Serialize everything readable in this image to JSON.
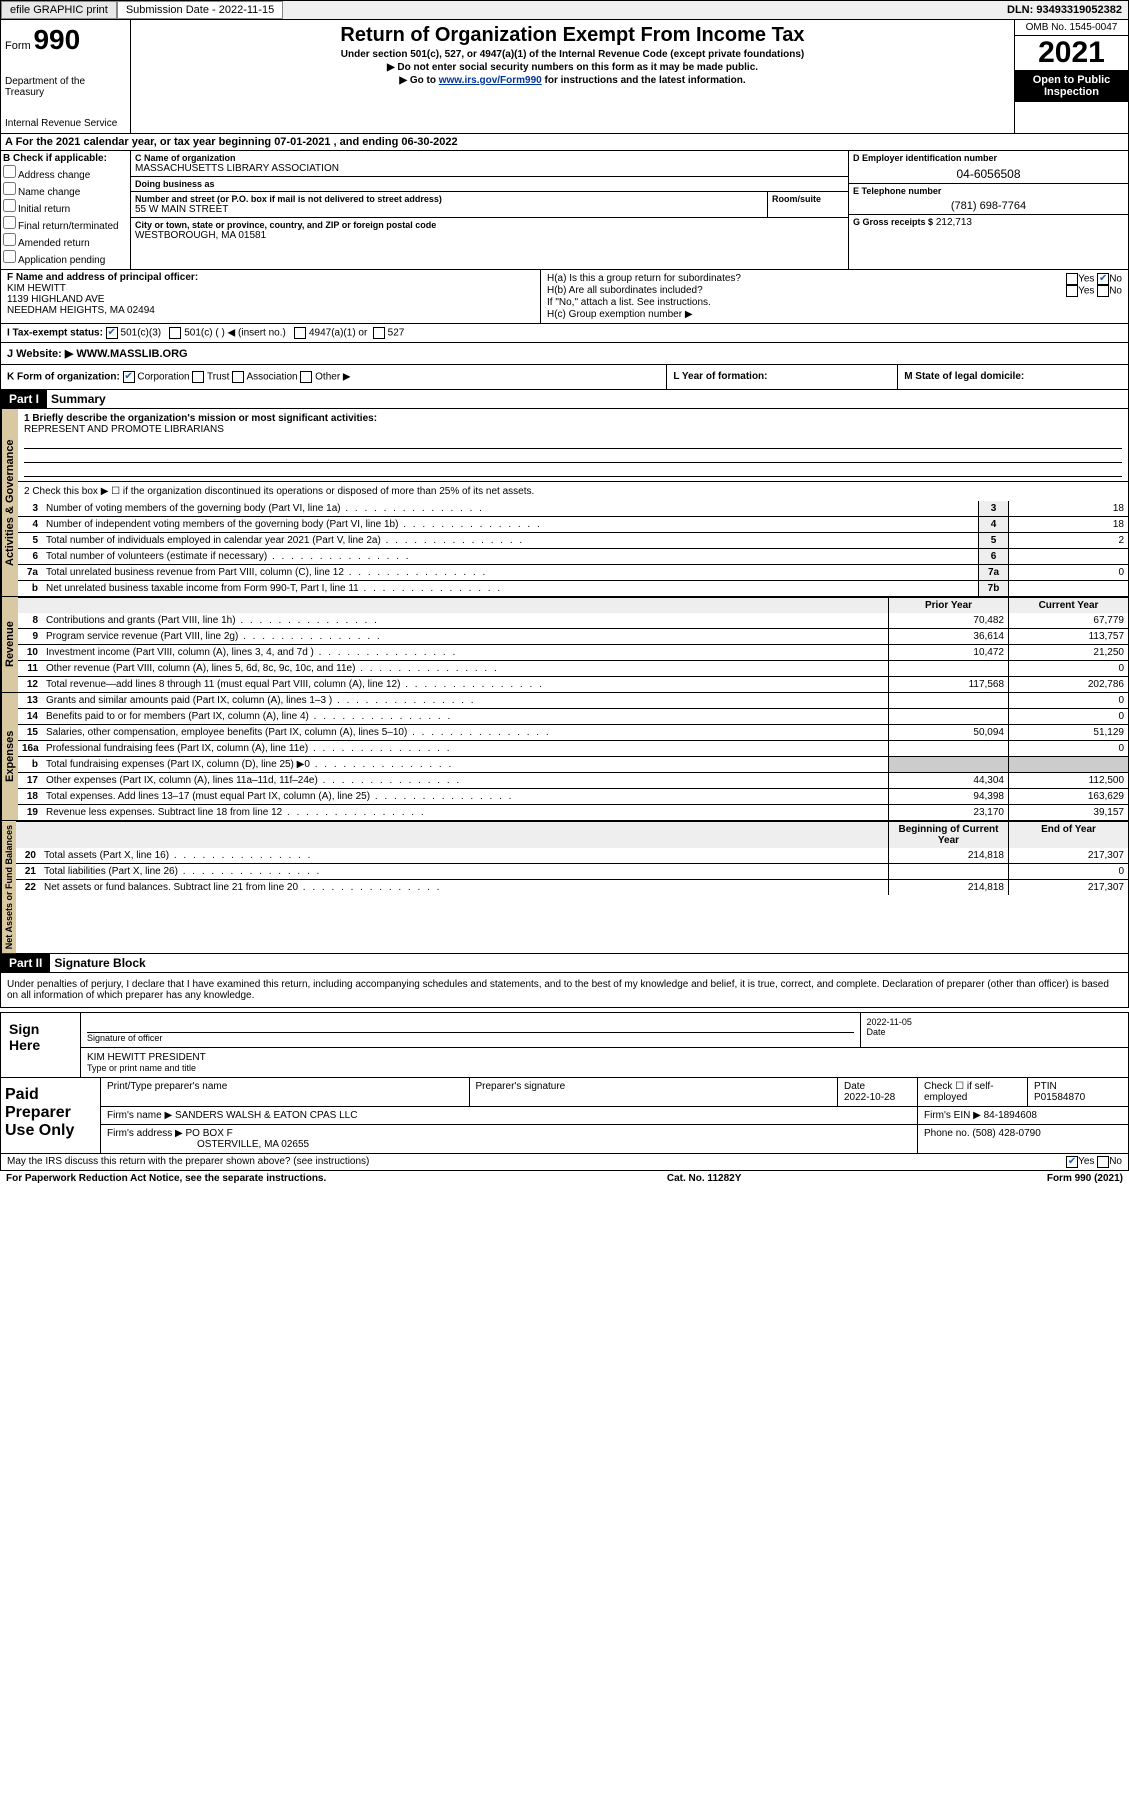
{
  "topbar": {
    "efile": "efile GRAPHIC print",
    "sub_label": "Submission Date - 2022-11-15",
    "dln": "DLN: 93493319052382"
  },
  "header": {
    "form_word": "Form",
    "form_num": "990",
    "title": "Return of Organization Exempt From Income Tax",
    "sub1": "Under section 501(c), 527, or 4947(a)(1) of the Internal Revenue Code (except private foundations)",
    "sub2": "▶ Do not enter social security numbers on this form as it may be made public.",
    "sub3_pre": "▶ Go to ",
    "sub3_link": "www.irs.gov/Form990",
    "sub3_post": " for instructions and the latest information.",
    "dept": "Department of the Treasury",
    "irs": "Internal Revenue Service",
    "omb": "OMB No. 1545-0047",
    "year": "2021",
    "inspect": "Open to Public Inspection"
  },
  "taxyear": "A For the 2021 calendar year, or tax year beginning 07-01-2021   , and ending 06-30-2022",
  "checkB": {
    "label": "B Check if applicable:",
    "items": [
      "Address change",
      "Name change",
      "Initial return",
      "Final return/terminated",
      "Amended return",
      "Application pending"
    ]
  },
  "orgC": {
    "name_label": "C Name of organization",
    "name": "MASSACHUSETTS LIBRARY ASSOCIATION",
    "dba_label": "Doing business as",
    "dba": "",
    "street_label": "Number and street (or P.O. box if mail is not delivered to street address)",
    "street": "55 W MAIN STREET",
    "room_label": "Room/suite",
    "city_label": "City or town, state or province, country, and ZIP or foreign postal code",
    "city": "WESTBOROUGH, MA  01581"
  },
  "colD": {
    "d_label": "D Employer identification number",
    "d_val": "04-6056508",
    "e_label": "E Telephone number",
    "e_val": "(781) 698-7764",
    "g_label": "G Gross receipts $",
    "g_val": "212,713"
  },
  "sectionF": {
    "f_label": "F Name and address of principal officer:",
    "f_name": "KIM HEWITT",
    "f_addr1": "1139 HIGHLAND AVE",
    "f_addr2": "NEEDHAM HEIGHTS, MA  02494",
    "ha": "H(a)  Is this a group return for subordinates?",
    "ha_yes": "Yes",
    "ha_no": "No",
    "hb": "H(b)  Are all subordinates included?",
    "hb_note": "If \"No,\" attach a list. See instructions.",
    "hc": "H(c)  Group exemption number ▶"
  },
  "exempt": {
    "i_label": "I   Tax-exempt status:",
    "opt1": "501(c)(3)",
    "opt2": "501(c) (  ) ◀ (insert no.)",
    "opt3": "4947(a)(1) or",
    "opt4": "527"
  },
  "website": {
    "j_label": "J   Website: ▶",
    "val": "WWW.MASSLIB.ORG"
  },
  "korg": {
    "k": "K Form of organization:",
    "opts": [
      "Corporation",
      "Trust",
      "Association",
      "Other ▶"
    ],
    "l": "L Year of formation:",
    "m": "M State of legal domicile:"
  },
  "part1": {
    "hdr": "Part I",
    "title": "Summary",
    "q1_label": "1  Briefly describe the organization's mission or most significant activities:",
    "q1_val": "REPRESENT AND PROMOTE LIBRARIANS",
    "q2": "2   Check this box ▶ ☐  if the organization discontinued its operations or disposed of more than 25% of its net assets.",
    "rows_gov": [
      {
        "n": "3",
        "t": "Number of voting members of the governing body (Part VI, line 1a)",
        "box": "3",
        "v": "18"
      },
      {
        "n": "4",
        "t": "Number of independent voting members of the governing body (Part VI, line 1b)",
        "box": "4",
        "v": "18"
      },
      {
        "n": "5",
        "t": "Total number of individuals employed in calendar year 2021 (Part V, line 2a)",
        "box": "5",
        "v": "2"
      },
      {
        "n": "6",
        "t": "Total number of volunteers (estimate if necessary)",
        "box": "6",
        "v": ""
      },
      {
        "n": "7a",
        "t": "Total unrelated business revenue from Part VIII, column (C), line 12",
        "box": "7a",
        "v": "0"
      },
      {
        "n": "b",
        "t": "Net unrelated business taxable income from Form 990-T, Part I, line 11",
        "box": "7b",
        "v": ""
      }
    ],
    "prior_hdr": "Prior Year",
    "curr_hdr": "Current Year",
    "rows_rev": [
      {
        "n": "8",
        "t": "Contributions and grants (Part VIII, line 1h)",
        "p": "70,482",
        "c": "67,779"
      },
      {
        "n": "9",
        "t": "Program service revenue (Part VIII, line 2g)",
        "p": "36,614",
        "c": "113,757"
      },
      {
        "n": "10",
        "t": "Investment income (Part VIII, column (A), lines 3, 4, and 7d )",
        "p": "10,472",
        "c": "21,250"
      },
      {
        "n": "11",
        "t": "Other revenue (Part VIII, column (A), lines 5, 6d, 8c, 9c, 10c, and 11e)",
        "p": "",
        "c": "0"
      },
      {
        "n": "12",
        "t": "Total revenue—add lines 8 through 11 (must equal Part VIII, column (A), line 12)",
        "p": "117,568",
        "c": "202,786"
      }
    ],
    "rows_exp": [
      {
        "n": "13",
        "t": "Grants and similar amounts paid (Part IX, column (A), lines 1–3 )",
        "p": "",
        "c": "0"
      },
      {
        "n": "14",
        "t": "Benefits paid to or for members (Part IX, column (A), line 4)",
        "p": "",
        "c": "0"
      },
      {
        "n": "15",
        "t": "Salaries, other compensation, employee benefits (Part IX, column (A), lines 5–10)",
        "p": "50,094",
        "c": "51,129"
      },
      {
        "n": "16a",
        "t": "Professional fundraising fees (Part IX, column (A), line 11e)",
        "p": "",
        "c": "0"
      },
      {
        "n": "b",
        "t": "Total fundraising expenses (Part IX, column (D), line 25) ▶0",
        "p": "grey",
        "c": "grey"
      },
      {
        "n": "17",
        "t": "Other expenses (Part IX, column (A), lines 11a–11d, 11f–24e)",
        "p": "44,304",
        "c": "112,500"
      },
      {
        "n": "18",
        "t": "Total expenses. Add lines 13–17 (must equal Part IX, column (A), line 25)",
        "p": "94,398",
        "c": "163,629"
      },
      {
        "n": "19",
        "t": "Revenue less expenses. Subtract line 18 from line 12",
        "p": "23,170",
        "c": "39,157"
      }
    ],
    "begin_hdr": "Beginning of Current Year",
    "end_hdr": "End of Year",
    "rows_bal": [
      {
        "n": "20",
        "t": "Total assets (Part X, line 16)",
        "p": "214,818",
        "c": "217,307"
      },
      {
        "n": "21",
        "t": "Total liabilities (Part X, line 26)",
        "p": "",
        "c": "0"
      },
      {
        "n": "22",
        "t": "Net assets or fund balances. Subtract line 21 from line 20",
        "p": "214,818",
        "c": "217,307"
      }
    ],
    "vlabels": {
      "gov": "Activities & Governance",
      "rev": "Revenue",
      "exp": "Expenses",
      "bal": "Net Assets or Fund Balances"
    }
  },
  "part2": {
    "hdr": "Part II",
    "title": "Signature Block",
    "perjury": "Under penalties of perjury, I declare that I have examined this return, including accompanying schedules and statements, and to the best of my knowledge and belief, it is true, correct, and complete. Declaration of preparer (other than officer) is based on all information of which preparer has any knowledge.",
    "sign_here": "Sign Here",
    "sig_officer": "Signature of officer",
    "sig_date": "2022-11-05",
    "date_label": "Date",
    "sig_name": "KIM HEWITT  PRESIDENT",
    "type_label": "Type or print name and title",
    "paid": "Paid Preparer Use Only",
    "prep_name_label": "Print/Type preparer's name",
    "prep_sig_label": "Preparer's signature",
    "prep_date_label": "Date",
    "prep_date": "2022-10-28",
    "check_if": "Check ☐ if self-employed",
    "ptin_label": "PTIN",
    "ptin": "P01584870",
    "firm_name_label": "Firm's name   ▶",
    "firm_name": "SANDERS WALSH & EATON CPAS LLC",
    "firm_ein_label": "Firm's EIN ▶",
    "firm_ein": "84-1894608",
    "firm_addr_label": "Firm's address ▶",
    "firm_addr1": "PO BOX F",
    "firm_addr2": "OSTERVILLE, MA  02655",
    "phone_label": "Phone no.",
    "phone": "(508) 428-0790",
    "discuss": "May the IRS discuss this return with the preparer shown above? (see instructions)",
    "yes": "Yes",
    "no": "No"
  },
  "footer": {
    "paperwork": "For Paperwork Reduction Act Notice, see the separate instructions.",
    "cat": "Cat. No. 11282Y",
    "form": "Form 990 (2021)"
  },
  "colors": {
    "accent": "#1a5fb4",
    "vlabel_bg": "#d9c9a3",
    "grey": "#cccccc"
  }
}
